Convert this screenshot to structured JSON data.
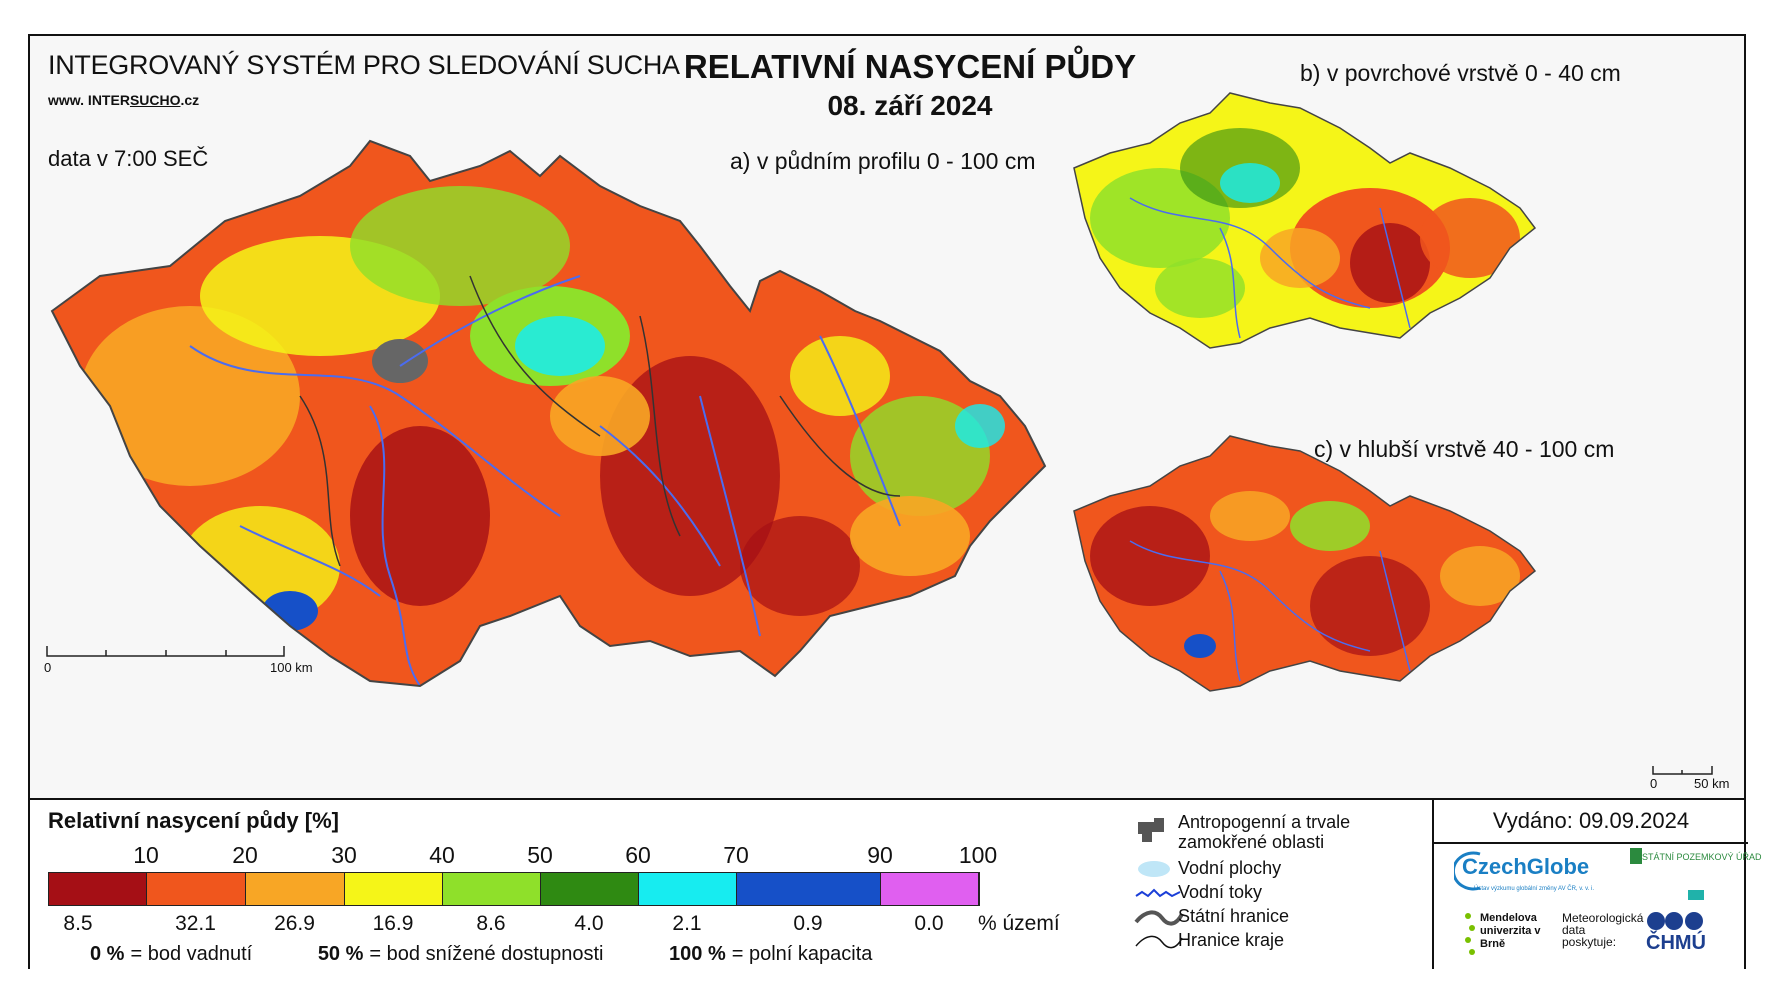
{
  "header": {
    "system_title": "INTEGROVANÝ SYSTÉM PRO SLEDOVÁNÍ SUCHA",
    "url_prefix": "www. INTER",
    "url_mid": "SUCHO",
    "url_suffix": ".cz",
    "data_time": "data v 7:00 SEČ",
    "main_title": "RELATIVNÍ NASYCENÍ PŮDY",
    "date": "08. září 2024"
  },
  "maps": {
    "a_label": "a) v půdním profilu 0 - 100 cm",
    "b_label": "b) v povrchové vrstvě 0 - 40 cm",
    "c_label": "c) v hlubší vrstvě 40 - 100 cm",
    "scale_main_start": "0",
    "scale_main_end": "100 km",
    "scale_small_start": "0",
    "scale_small_end": "50 km"
  },
  "legend": {
    "title": "Relativní nasycení půdy [%]",
    "ticks": [
      "10",
      "20",
      "30",
      "40",
      "50",
      "60",
      "70",
      "90",
      "100"
    ],
    "classes": [
      {
        "color": "#a50f15",
        "share": "8.5"
      },
      {
        "color": "#f0561d",
        "share": "32.1"
      },
      {
        "color": "#f8a625",
        "share": "26.9"
      },
      {
        "color": "#f5f518",
        "share": "16.9"
      },
      {
        "color": "#8fe02a",
        "share": "8.6"
      },
      {
        "color": "#2f8a12",
        "share": "4.0"
      },
      {
        "color": "#17ecf0",
        "share": "2.1"
      },
      {
        "color": "#1650c8",
        "share": "0.9"
      },
      {
        "color": "#e05ff0",
        "share": "0.0"
      }
    ],
    "unit_label": "% území",
    "note1_value": "0 %",
    "note1_text": "= bod vadnutí",
    "note2_value": "50 %",
    "note2_text": "= bod snížené dostupnosti",
    "note3_value": "100 %",
    "note3_text": "= polní kapacita"
  },
  "symbols": {
    "urban": "Antropogenní a trvale",
    "urban2": "zamokřené oblasti",
    "water_bodies": "Vodní plochy",
    "rivers": "Vodní toky",
    "state_border": "Státní hranice",
    "region_border": "Hranice kraje"
  },
  "issued": {
    "text": "Vydáno: 09.09.2024",
    "czechglobe": "CzechGlobe",
    "czechglobe_sub": "Ústav výzkumu globální změny AV ČR, v. v. i.",
    "spu": "STÁTNÍ POZEMKOVÝ ÚŘAD",
    "mendel": "Mendelova univerzita v Brně",
    "met": "Meteorologická data poskytuje:",
    "chmu": "ČHMÚ"
  }
}
